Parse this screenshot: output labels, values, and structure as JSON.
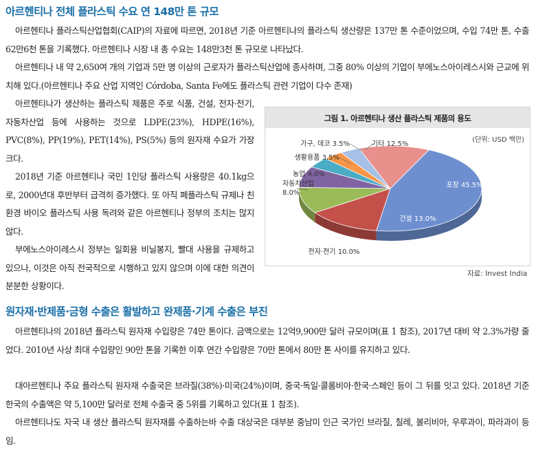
{
  "section1": {
    "heading": "아르헨티나 전체 플라스틱 수요 연 148만 톤 규모",
    "p1": "아르헨티나 플라스틱산업협회(CAIP)의 자료에 따르면, 2018년 기준 아르헨티나의 플라스틱 생산량은 137만 톤 수준이었으며, 수입 74만 톤, 수출 62만6천 톤을 기록했다. 아르헨티나 시장 내 총 수요는 148만3천 톤 규모로 나타났다.",
    "p2": "아르헨티나 내 약 2,650여 개의 기업과 5만 명 이상의 근로자가 플라스틱산업에 종사하며, 그중 80% 이상의 기업이 부에노스아이레스시와 근교에 위치해 있다.(아르헨티나 주요 산업 지역인 Córdoba, Santa Fe에도 플라스틱 관련 기업이 다수 존재)",
    "p3": "아르헨티나가 생산하는 플라스틱 제품은 주로 식품, 건설, 전자·전기, 자동차산업 등에 사용하는 것으로 LDPE(23%), HDPE(16%), PVC(8%), PP(19%), PET(14%), PS(5%) 등의 원자재 수요가 가장 크다.",
    "p4": "2018년 기준 아르헨티나 국민 1인당 플라스틱 사용량은 40.1kg으로, 2000년대 후반부터 급격히 증가했다. 또 아직 폐플라스틱 규제나 친환경 바이오 플라스틱 사용 독려와 같은 아르헨티나 정부의 조치는 많지 않다.",
    "p5": "부에노스아이레스시 정부는 일회용 비닐봉지, 빨대 사용을 규제하고 있으나, 이것은 아직 전국적으로 시행하고 있지 않으며 이에 대한 의견이 분분한 상황이다."
  },
  "figure": {
    "title": "그림 1. 아르헨티나 생산 플라스틱 제품의 용도",
    "unit": "(단위: USD 백만)",
    "source": "자료: Invest India"
  },
  "chart_data": {
    "type": "pie",
    "title": "그림 1. 아르헨티나 생산 플라스틱 제품의 용도",
    "unit": "(단위: USD 백만)",
    "slices": [
      {
        "name": "포장",
        "value": 45.5,
        "label": "포장 45.5%",
        "color": "#6d8fd0"
      },
      {
        "name": "건설",
        "value": 13.0,
        "label": "건설 13.0%",
        "color": "#c4504a"
      },
      {
        "name": "전자·전기",
        "value": 10.0,
        "label": "전자·전기 10.0%",
        "color": "#9bbb59"
      },
      {
        "name": "자동차산업",
        "value": 8.0,
        "label": "자동차산업 8.0%",
        "color": "#8064a2"
      },
      {
        "name": "농업",
        "value": 4.0,
        "label": "농업 4.0%",
        "color": "#4bacc6"
      },
      {
        "name": "생활용품",
        "value": 3.5,
        "label": "생활용품 3.5%",
        "color": "#f79646"
      },
      {
        "name": "가구, 데코",
        "value": 3.5,
        "label": "가구, 데코 3.5%",
        "color": "#a6c0e6"
      },
      {
        "name": "기타",
        "value": 12.5,
        "label": "기타 12.5%",
        "color": "#e8908c"
      }
    ]
  },
  "section2": {
    "heading": "원자재·반제품·금형 수출은 활발하고 완제품·기계 수출은 부진",
    "p6": "아르헨티나의 2018년 플라스틱 원자재 수입량은 74만 톤이다. 금액으로는 12억9,900만 달러 규모이며(표 1 참조), 2017년 대비 약 2.3%가량 줄었다. 2010년 사상 최대 수입량인 90만 톤을 기록한 이후 연간 수입량은 70만 톤에서 80만 톤 사이를 유지하고 있다.",
    "p7": "대아르헨티나 주요 플라스틱 원자재 수출국은 브라질(38%)·미국(24%)이며, 중국·독일·콜롬비아·한국·스페인 등이 그 뒤를 잇고 있다. 2018년 기준 한국의 수출액은 약 5,100만 달러로 전체 수출국 중 5위를 기록하고 있다(표 1 참조).",
    "p8": "아르헨티나도 자국 내 생산 플라스틱 원자재를 수출하는바 수출 대상국은 대부분 중남미 인근 국가인 브라질, 칠레, 볼리비아, 우루과이, 파라과이 등임."
  }
}
